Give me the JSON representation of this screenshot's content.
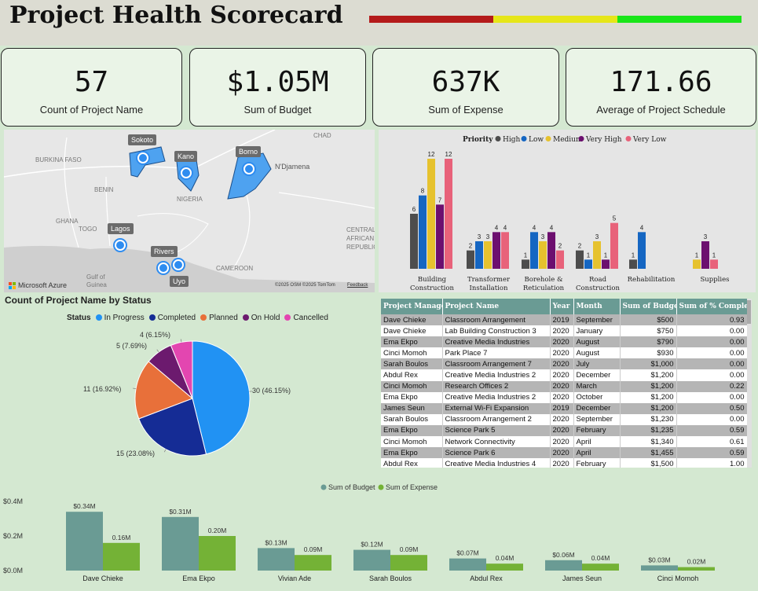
{
  "header": {
    "title": "Project Health Scorecard",
    "status_colors": [
      "#b41b1b",
      "#e6e619",
      "#19e619"
    ]
  },
  "kpis": [
    {
      "value": "57",
      "label": "Count of Project Name"
    },
    {
      "value": "$1.05M",
      "label": "Sum of Budget"
    },
    {
      "value": "637K",
      "label": "Sum of Expense"
    },
    {
      "value": "171.66",
      "label": "Average of Project Schedule"
    }
  ],
  "map": {
    "countries": [
      "CHAD",
      "BURKINA FASO",
      "BENIN",
      "NIGERIA",
      "N'Djamena",
      "GHANA",
      "TOGO",
      "CAMEROON",
      "CENTRAL AFRICAN REPUBLIC",
      "Gulf of Guinea"
    ],
    "locations": [
      "Sokoto",
      "Kano",
      "Borno",
      "Lagos",
      "Rivers",
      "Uyo"
    ],
    "brand": "Microsoft Azure",
    "attribution": "©2025 OSM  ©2025 TomTom",
    "feedback": "Feedback"
  },
  "priority_chart": {
    "legend_title": "Priority",
    "colors": {
      "High": "#4d4d4d",
      "Low": "#1566c2",
      "Medium": "#e6c22e",
      "Very High": "#6c0f6f",
      "Very Low": "#e8627a"
    }
  },
  "pie_chart": {
    "title": "Count of Project Name by Status",
    "legend_title": "Status",
    "colors": [
      "#2192f3",
      "#152c95",
      "#e8703a",
      "#6c1a6e",
      "#e346b0"
    ]
  },
  "table": {
    "columns": [
      "Project Manager",
      "Project Name",
      "Year",
      "Month",
      "Sum of Budget",
      "Sum of % Complete"
    ],
    "rows": [
      [
        "Dave Chieke",
        "Classroom Arrangement",
        "2019",
        "September",
        "$500",
        "0.93"
      ],
      [
        "Dave Chieke",
        "Lab Building Construction 3",
        "2020",
        "January",
        "$750",
        "0.00"
      ],
      [
        "Ema Ekpo",
        "Creative Media Industries",
        "2020",
        "August",
        "$790",
        "0.00"
      ],
      [
        "Cinci Momoh",
        "Park Place 7",
        "2020",
        "August",
        "$930",
        "0.00"
      ],
      [
        "Sarah Boulos",
        "Classroom Arrangement 7",
        "2020",
        "July",
        "$1,000",
        "0.00"
      ],
      [
        "Abdul Rex",
        "Creative Media Industries 2",
        "2020",
        "December",
        "$1,200",
        "0.00"
      ],
      [
        "Cinci Momoh",
        "Research Offices 2",
        "2020",
        "March",
        "$1,200",
        "0.22"
      ],
      [
        "Ema Ekpo",
        "Creative Media Industries 2",
        "2020",
        "October",
        "$1,200",
        "0.00"
      ],
      [
        "James Seun",
        "External Wi-Fi Expansion",
        "2019",
        "December",
        "$1,200",
        "0.50"
      ],
      [
        "Sarah Boulos",
        "Classroom Arrangement 2",
        "2020",
        "September",
        "$1,230",
        "0.00"
      ],
      [
        "Ema Ekpo",
        "Science Park 5",
        "2020",
        "February",
        "$1,235",
        "0.59"
      ],
      [
        "Cinci Momoh",
        "Network Connectivity",
        "2020",
        "April",
        "$1,340",
        "0.61"
      ],
      [
        "Ema Ekpo",
        "Science Park 6",
        "2020",
        "April",
        "$1,455",
        "0.59"
      ],
      [
        "Abdul Rex",
        "Creative Media Industries 4",
        "2020",
        "February",
        "$1,500",
        "1.00"
      ]
    ]
  },
  "budget_chart": {
    "colors": {
      "Sum of Budget": "#6a9b94",
      "Sum of Expense": "#74b236"
    }
  },
  "chart_data": [
    {
      "type": "bar",
      "categories": [
        "Building Construction",
        "Transformer Installation",
        "Borehole & Reticulation",
        "Road Construction",
        "Rehabilitation",
        "Supplies"
      ],
      "series": [
        {
          "name": "High",
          "values": [
            6,
            2,
            1,
            2,
            1,
            null
          ]
        },
        {
          "name": "Low",
          "values": [
            8,
            3,
            4,
            1,
            4,
            null
          ]
        },
        {
          "name": "Medium",
          "values": [
            12,
            3,
            3,
            3,
            null,
            1
          ]
        },
        {
          "name": "Very High",
          "values": [
            7,
            4,
            4,
            1,
            null,
            3
          ]
        },
        {
          "name": "Very Low",
          "values": [
            12,
            4,
            2,
            5,
            null,
            1
          ]
        }
      ],
      "legend": "top"
    },
    {
      "type": "pie",
      "title": "Count of Project Name by Status",
      "labels": [
        "In Progress",
        "Completed",
        "Planned",
        "On Hold",
        "Cancelled"
      ],
      "values": [
        30,
        15,
        11,
        5,
        4
      ],
      "data_labels": [
        "30 (46.15%)",
        "15 (23.08%)",
        "11 (16.92%)",
        "5 (7.69%)",
        "4 (6.15%)"
      ],
      "legend": "top"
    },
    {
      "type": "bar",
      "categories": [
        "Dave Chieke",
        "Ema Ekpo",
        "Vivian Ade",
        "Sarah Boulos",
        "Abdul Rex",
        "James Seun",
        "Cinci Momoh"
      ],
      "series": [
        {
          "name": "Sum of Budget",
          "values": [
            0.34,
            0.31,
            0.13,
            0.12,
            0.07,
            0.06,
            0.03
          ],
          "labels": [
            "$0.34M",
            "$0.31M",
            "$0.13M",
            "$0.12M",
            "$0.07M",
            "$0.06M",
            "$0.03M"
          ]
        },
        {
          "name": "Sum of Expense",
          "values": [
            0.16,
            0.2,
            0.09,
            0.09,
            0.04,
            0.04,
            0.02
          ],
          "labels": [
            "0.16M",
            "0.20M",
            "0.09M",
            "0.09M",
            "0.04M",
            "0.04M",
            "0.02M"
          ]
        }
      ],
      "yticks": [
        "$0.0M",
        "$0.2M",
        "$0.4M"
      ],
      "ylim": [
        0,
        0.4
      ],
      "legend": "top"
    }
  ]
}
